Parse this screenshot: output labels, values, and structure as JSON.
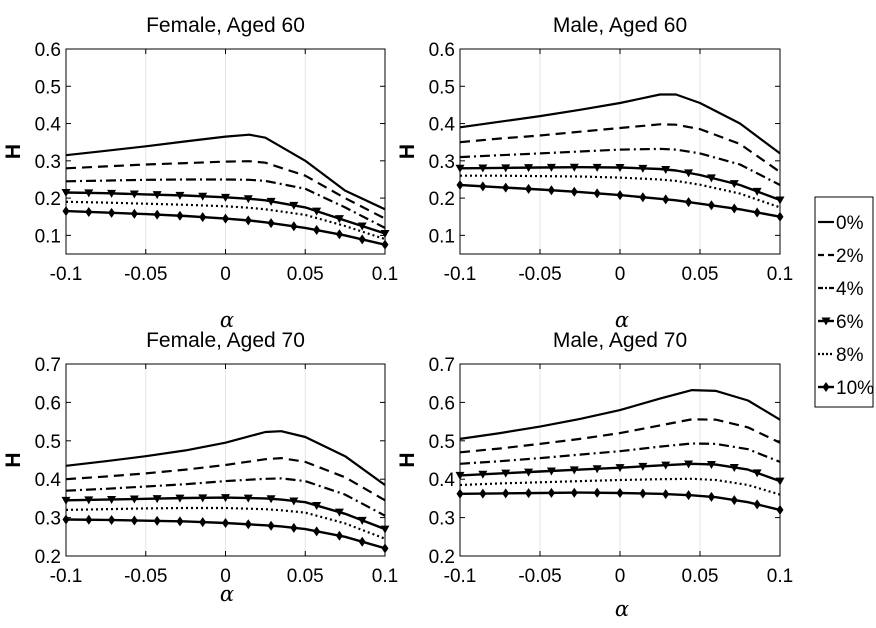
{
  "legend": {
    "entries": [
      {
        "label": "0%",
        "style": "solid"
      },
      {
        "label": "2%",
        "style": "dashed"
      },
      {
        "label": "4%",
        "style": "dashdot"
      },
      {
        "label": "6%",
        "style": "solid-triangle"
      },
      {
        "label": "8%",
        "style": "dotted"
      },
      {
        "label": "10%",
        "style": "solid-diamond"
      }
    ]
  },
  "chart_data": [
    {
      "type": "line",
      "title": "Female, Aged 60",
      "xlabel": "α",
      "ylabel": "H",
      "xlim": [
        -0.1,
        0.1
      ],
      "ylim": [
        0.05,
        0.6
      ],
      "xticks": [
        "-0.1",
        "-0.05",
        "0",
        "0.05",
        "0.1"
      ],
      "yticks": [
        "0.1",
        "0.2",
        "0.3",
        "0.4",
        "0.5",
        "0.6"
      ],
      "grid": "vertical",
      "x": [
        -0.1,
        -0.075,
        -0.05,
        -0.025,
        0,
        0.015,
        0.025,
        0.05,
        0.075,
        0.1
      ],
      "series": [
        {
          "name": "0%",
          "values": [
            0.315,
            0.327,
            0.339,
            0.352,
            0.365,
            0.37,
            0.362,
            0.3,
            0.22,
            0.17
          ]
        },
        {
          "name": "2%",
          "values": [
            0.28,
            0.285,
            0.29,
            0.294,
            0.298,
            0.299,
            0.295,
            0.26,
            0.2,
            0.145
          ]
        },
        {
          "name": "4%",
          "values": [
            0.245,
            0.247,
            0.249,
            0.25,
            0.25,
            0.249,
            0.246,
            0.225,
            0.175,
            0.12
          ]
        },
        {
          "name": "6%",
          "values": [
            0.215,
            0.213,
            0.21,
            0.207,
            0.202,
            0.198,
            0.194,
            0.175,
            0.14,
            0.105
          ]
        },
        {
          "name": "8%",
          "values": [
            0.19,
            0.188,
            0.185,
            0.182,
            0.178,
            0.174,
            0.17,
            0.155,
            0.125,
            0.09
          ]
        },
        {
          "name": "10%",
          "values": [
            0.165,
            0.161,
            0.157,
            0.152,
            0.145,
            0.14,
            0.135,
            0.12,
            0.1,
            0.075
          ]
        }
      ]
    },
    {
      "type": "line",
      "title": "Male, Aged 60",
      "xlabel": "α",
      "ylabel": "H",
      "xlim": [
        -0.1,
        0.1
      ],
      "ylim": [
        0.05,
        0.6
      ],
      "xticks": [
        "-0.1",
        "-0.05",
        "0",
        "0.05",
        "0.1"
      ],
      "yticks": [
        "0.1",
        "0.2",
        "0.3",
        "0.4",
        "0.5",
        "0.6"
      ],
      "grid": "vertical",
      "x": [
        -0.1,
        -0.075,
        -0.05,
        -0.025,
        0,
        0.025,
        0.035,
        0.05,
        0.075,
        0.1
      ],
      "series": [
        {
          "name": "0%",
          "values": [
            0.39,
            0.405,
            0.42,
            0.437,
            0.455,
            0.478,
            0.478,
            0.455,
            0.4,
            0.32
          ]
        },
        {
          "name": "2%",
          "values": [
            0.35,
            0.36,
            0.368,
            0.378,
            0.388,
            0.398,
            0.397,
            0.385,
            0.345,
            0.27
          ]
        },
        {
          "name": "4%",
          "values": [
            0.31,
            0.315,
            0.32,
            0.325,
            0.33,
            0.332,
            0.33,
            0.32,
            0.29,
            0.235
          ]
        },
        {
          "name": "6%",
          "values": [
            0.28,
            0.281,
            0.282,
            0.283,
            0.282,
            0.278,
            0.274,
            0.262,
            0.235,
            0.195
          ]
        },
        {
          "name": "8%",
          "values": [
            0.26,
            0.26,
            0.259,
            0.258,
            0.255,
            0.25,
            0.246,
            0.236,
            0.212,
            0.175
          ]
        },
        {
          "name": "10%",
          "values": [
            0.235,
            0.229,
            0.223,
            0.216,
            0.208,
            0.198,
            0.194,
            0.185,
            0.17,
            0.15
          ]
        }
      ]
    },
    {
      "type": "line",
      "title": "Female, Aged 70",
      "xlabel": "α",
      "ylabel": "H",
      "xlim": [
        -0.1,
        0.1
      ],
      "ylim": [
        0.2,
        0.7
      ],
      "xticks": [
        "-0.1",
        "-0.05",
        "0",
        "0.05",
        "0.1"
      ],
      "yticks": [
        "0.2",
        "0.3",
        "0.4",
        "0.5",
        "0.6",
        "0.7"
      ],
      "grid": "vertical",
      "x": [
        -0.1,
        -0.075,
        -0.05,
        -0.025,
        0,
        0.025,
        0.035,
        0.05,
        0.075,
        0.1
      ],
      "series": [
        {
          "name": "0%",
          "values": [
            0.435,
            0.447,
            0.46,
            0.475,
            0.495,
            0.523,
            0.525,
            0.51,
            0.46,
            0.385
          ]
        },
        {
          "name": "2%",
          "values": [
            0.4,
            0.407,
            0.415,
            0.425,
            0.437,
            0.452,
            0.455,
            0.445,
            0.405,
            0.345
          ]
        },
        {
          "name": "4%",
          "values": [
            0.37,
            0.375,
            0.381,
            0.387,
            0.395,
            0.401,
            0.402,
            0.395,
            0.36,
            0.305
          ]
        },
        {
          "name": "6%",
          "values": [
            0.345,
            0.347,
            0.349,
            0.351,
            0.352,
            0.35,
            0.347,
            0.34,
            0.31,
            0.27
          ]
        },
        {
          "name": "8%",
          "values": [
            0.32,
            0.322,
            0.324,
            0.325,
            0.325,
            0.322,
            0.319,
            0.313,
            0.285,
            0.245
          ]
        },
        {
          "name": "10%",
          "values": [
            0.295,
            0.294,
            0.292,
            0.29,
            0.286,
            0.28,
            0.277,
            0.27,
            0.25,
            0.22
          ]
        }
      ]
    },
    {
      "type": "line",
      "title": "Male, Aged 70",
      "xlabel": "α",
      "ylabel": "H",
      "xlim": [
        -0.1,
        0.1
      ],
      "ylim": [
        0.2,
        0.7
      ],
      "xticks": [
        "-0.1",
        "-0.05",
        "0",
        "0.05",
        "0.1"
      ],
      "yticks": [
        "0.2",
        "0.3",
        "0.4",
        "0.5",
        "0.6",
        "0.7"
      ],
      "grid": "vertical",
      "x": [
        -0.1,
        -0.075,
        -0.05,
        -0.025,
        0,
        0.025,
        0.045,
        0.06,
        0.08,
        0.1
      ],
      "series": [
        {
          "name": "0%",
          "values": [
            0.505,
            0.52,
            0.537,
            0.557,
            0.58,
            0.61,
            0.632,
            0.63,
            0.605,
            0.555
          ]
        },
        {
          "name": "2%",
          "values": [
            0.47,
            0.48,
            0.492,
            0.505,
            0.52,
            0.54,
            0.556,
            0.555,
            0.535,
            0.495
          ]
        },
        {
          "name": "4%",
          "values": [
            0.44,
            0.447,
            0.455,
            0.464,
            0.473,
            0.485,
            0.493,
            0.492,
            0.478,
            0.445
          ]
        },
        {
          "name": "6%",
          "values": [
            0.41,
            0.415,
            0.42,
            0.425,
            0.43,
            0.436,
            0.44,
            0.438,
            0.425,
            0.395
          ]
        },
        {
          "name": "8%",
          "values": [
            0.385,
            0.389,
            0.392,
            0.395,
            0.398,
            0.4,
            0.401,
            0.398,
            0.385,
            0.36
          ]
        },
        {
          "name": "10%",
          "values": [
            0.362,
            0.363,
            0.364,
            0.365,
            0.364,
            0.362,
            0.358,
            0.353,
            0.34,
            0.32
          ]
        }
      ]
    }
  ]
}
